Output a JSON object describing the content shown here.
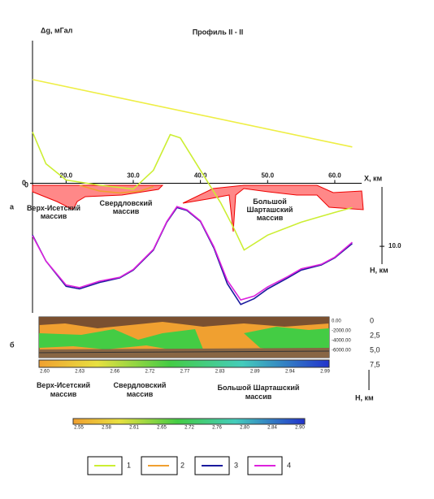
{
  "chart_data": {
    "type": "line",
    "title": "Профиль II - II",
    "ylabel": "Δg, мГал",
    "xlabel": "X, км",
    "xlim": [
      15,
      64
    ],
    "ylim": [
      -20,
      22
    ],
    "xticks": [
      {
        "value": 20,
        "label": "20.0"
      },
      {
        "value": 30,
        "label": "30.0"
      },
      {
        "value": 40,
        "label": "40.0"
      },
      {
        "value": 50,
        "label": "50.0"
      },
      {
        "value": 60,
        "label": "60.0"
      }
    ],
    "yticks": [
      0
    ],
    "series": [
      {
        "color": "#eeee44",
        "x": [
          15,
          62.6
        ],
        "values": [
          16,
          5.6
        ]
      },
      {
        "name": "1",
        "color": "#ccee33",
        "x": [
          15,
          17,
          20,
          25,
          30,
          33,
          35.5,
          37,
          40,
          43,
          45,
          46.5,
          50,
          55,
          60,
          62.6
        ],
        "values": [
          7.9,
          3,
          0.5,
          -0.3,
          -0.9,
          2,
          7.5,
          7,
          2,
          -3,
          -7,
          -10.3,
          -8,
          -6,
          -4.5,
          -3.75
        ]
      },
      {
        "name": "2",
        "color": "#f0a030",
        "x": [
          22,
          25,
          28,
          31,
          33
        ],
        "values": [
          -0.3,
          -1.2,
          -1.5,
          -1.2,
          -0.5
        ]
      },
      {
        "name": "3",
        "color": "#1a1a9e",
        "x": [
          15,
          17,
          20,
          22,
          25,
          28,
          30,
          33,
          35,
          36.5,
          38,
          40,
          42,
          44,
          46,
          48,
          50,
          53,
          55,
          58,
          60,
          62.6
        ],
        "values": [
          -8,
          -12,
          -15.9,
          -16.3,
          -15.3,
          -14.6,
          -13.4,
          -10.3,
          -6,
          -3.75,
          -4.2,
          -5.9,
          -10,
          -15.5,
          -18.7,
          -17.8,
          -16.3,
          -14.6,
          -13.4,
          -12.6,
          -11.5,
          -9.3
        ]
      },
      {
        "name": "4",
        "color": "#dd22dd",
        "x": [
          15,
          17,
          20,
          22,
          25,
          28,
          30,
          33,
          35,
          36.5,
          38,
          40,
          42,
          44,
          46,
          48,
          50,
          53,
          55,
          58,
          60,
          62.6
        ],
        "values": [
          -8.1,
          -12,
          -15.7,
          -16.1,
          -15.1,
          -14.5,
          -13.3,
          -10.2,
          -5.9,
          -3.6,
          -4.1,
          -5.8,
          -9.8,
          -15,
          -18,
          -17.4,
          -16,
          -14.4,
          -13.2,
          -12.5,
          -11.4,
          -9.1
        ]
      }
    ]
  },
  "zero_label": "0",
  "depth_axis": {
    "ticks": [
      {
        "value": 10,
        "label": "10.0"
      }
    ],
    "label": "H, км"
  },
  "panels": [
    "а",
    "б"
  ],
  "massifs_top": [
    "Верх-Исетский массив",
    "Свердловский массив",
    "Большой Шарташский массив"
  ],
  "massifs_bottom": [
    "Верх-Исетский массив",
    "Свердловский массив",
    "Большой Шарташский массив"
  ],
  "depth_label": "Н, км",
  "model_ticks_left": [
    "0.00",
    "-2000.00",
    "-4000.00",
    "-6000.00"
  ],
  "model_ticks_right": [
    "0",
    "2,5",
    "5,0",
    "7,5"
  ],
  "colorbar1": [
    "2.60",
    "2.63",
    "2.66",
    "2.72",
    "2.77",
    "2.83",
    "2.89",
    "2.94",
    "2.99"
  ],
  "colorbar2": [
    "2.55",
    "2.58",
    "2.61",
    "2.65",
    "2.72",
    "2.76",
    "2.80",
    "2.84",
    "2.90"
  ]
}
